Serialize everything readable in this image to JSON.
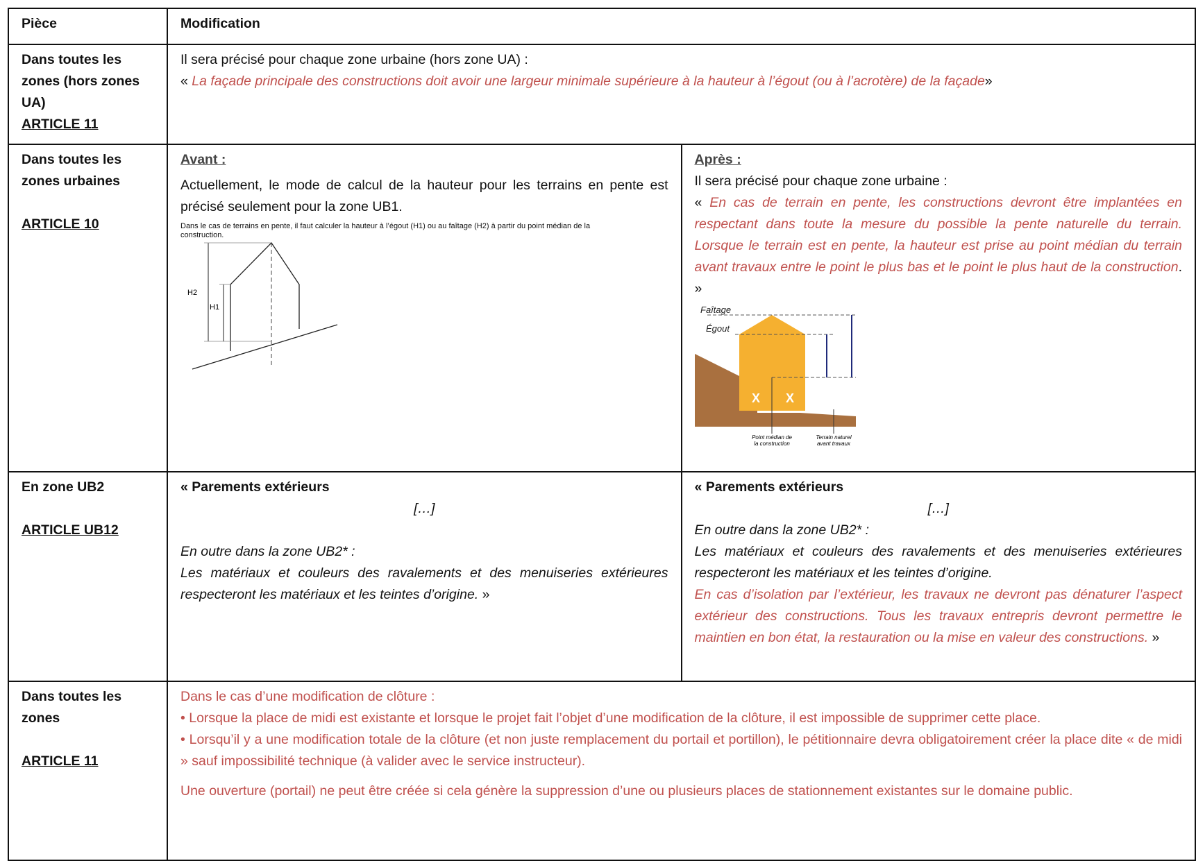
{
  "table": {
    "header": [
      "Pièce",
      "Modification"
    ],
    "rows": [
      {
        "piece": "Dans toutes les zones (hors zones UA)",
        "article": "ARTICLE 11",
        "intro": "Il sera précisé pour chaque zone urbaine (hors zone UA) :",
        "quote_open": "«",
        "quote": "La façade principale des constructions doit avoir une largeur minimale supérieure à la hauteur à l’égout (ou à l’acrotère) de la façade",
        "quote_close": "»"
      },
      {
        "piece": "Dans toutes les zones urbaines",
        "article": "ARTICLE 10",
        "before": {
          "heading": "Avant :",
          "text": "Actuellement, le mode de calcul de la hauteur pour les terrains en pente est précisé seulement pour la zone UB1.",
          "figure": {
            "caption": "Dans le cas de terrains en pente, il faut calculer la hauteur à l’égout (H1) ou au faîtage (H2) à partir du point médian de la construction.",
            "h2": "H2",
            "h1": "H1"
          }
        },
        "after": {
          "heading": "Après :",
          "intro": "Il sera précisé pour chaque zone urbaine :",
          "quote_open": "«",
          "quote": "En cas de terrain en pente, les constructions devront être implantées en respectant dans toute la mesure du possible la pente naturelle du terrain. Lorsque le terrain est en pente, la hauteur est prise au point médian du terrain avant travaux entre le point le plus bas et le point le plus haut de la construction",
          "quote_close": ". »",
          "figure": {
            "ridge": "Faîtage",
            "eaves": "Égout",
            "x": "X",
            "midpoint_1": "Point médian de",
            "midpoint_2": "la construction",
            "ground_1": "Terrain naturel",
            "ground_2": "avant travaux"
          }
        }
      },
      {
        "piece": "En zone UB2",
        "article": "ARTICLE UB12",
        "before": {
          "title": "« Parements extérieurs",
          "ellipsis": "[…]",
          "lead": "En outre dans la zone UB2* :",
          "text": "Les matériaux et couleurs des ravalements et des menuiseries extérieures respecteront les matériaux et les teintes d’origine.",
          "close": "»"
        },
        "after": {
          "title": "« Parements extérieurs",
          "ellipsis": "[…]",
          "lead": "En outre dans la zone UB2* :",
          "text": "Les matériaux et couleurs des ravalements et des menuiseries extérieures respecteront les matériaux et les teintes d’origine.",
          "added": "En cas d’isolation par l’extérieur, les travaux ne devront pas dénaturer l’aspect extérieur des constructions. Tous les travaux entrepris devront permettre le maintien en bon état, la restauration ou la mise en valeur des constructions.",
          "close": "»"
        }
      },
      {
        "piece": "Dans toutes les zones",
        "article": "ARTICLE 11",
        "lines": [
          "Dans le cas d’une modification de clôture :",
          "• Lorsque la place de midi est existante et lorsque le projet fait l’objet d’une modification de la clôture, il est impossible de supprimer cette place.",
          "• Lorsqu’il y a une modification totale de la clôture (et non juste remplacement du portail et portillon), le pétitionnaire devra obligatoirement créer la place dite « de midi » sauf impossibilité technique (à valider avec le service instructeur).",
          "Une ouverture (portail) ne peut être créée si cela génère la suppression d’une ou plusieurs places de stationnement existantes sur le domaine public."
        ]
      }
    ]
  }
}
